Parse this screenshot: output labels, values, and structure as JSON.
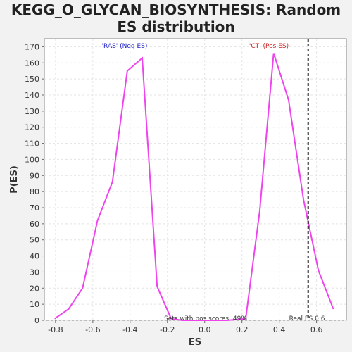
{
  "chart_data": {
    "type": "line",
    "title_line1": "KEGG_O_GLYCAN_BIOSYNTHESIS: Random",
    "title_line2": "ES distribution",
    "xlabel": "ES",
    "ylabel": "P(ES)",
    "xlim": [
      -0.86,
      0.76
    ],
    "ylim": [
      0,
      175
    ],
    "x_ticks": [
      -0.8,
      -0.6,
      -0.4,
      -0.2,
      0.0,
      0.2,
      0.4,
      0.6
    ],
    "x_tick_labels": [
      "-0.8",
      "-0.6",
      "-0.4",
      "-0.2",
      "0.0",
      "0.2",
      "0.4",
      "0.6"
    ],
    "y_ticks": [
      0,
      10,
      20,
      30,
      40,
      50,
      60,
      70,
      80,
      90,
      100,
      110,
      120,
      130,
      140,
      150,
      160,
      170
    ],
    "y_tick_labels": [
      "0",
      "10",
      "20",
      "30",
      "40",
      "50",
      "60",
      "70",
      "80",
      "90",
      "100",
      "110",
      "120",
      "130",
      "140",
      "150",
      "160",
      "170"
    ],
    "grid": true,
    "series": [
      {
        "color": "#ee44ee",
        "x": [
          -0.805,
          -0.73,
          -0.655,
          -0.575,
          -0.495,
          -0.415,
          -0.335,
          -0.255,
          -0.18,
          -0.12,
          0.0,
          0.12,
          0.22,
          0.295,
          0.37,
          0.45,
          0.53,
          0.61,
          0.69
        ],
        "y": [
          1,
          7,
          20,
          62,
          86,
          155,
          163,
          21,
          1,
          0,
          0,
          0,
          1,
          68,
          166,
          137,
          75,
          31,
          7
        ]
      }
    ],
    "real_es": 0.555,
    "annotations": {
      "neg_label": "'RAS' (Neg ES)",
      "neg_color": "#2222cc",
      "pos_label": "'CT' (Pos ES)",
      "pos_color": "#cc2222",
      "sets_text": "Sets with pos scores: 49%",
      "real_es_text": "Real ES 0.6"
    }
  }
}
